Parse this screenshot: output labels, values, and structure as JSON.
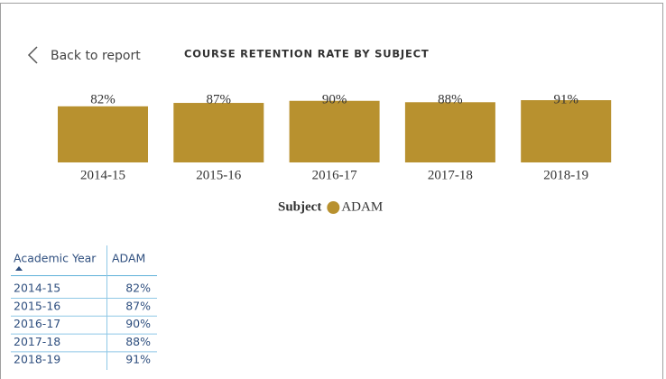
{
  "back_button": "Back to report",
  "chart_data": {
    "type": "bar",
    "title": "COURSE RETENTION RATE BY SUBJECT",
    "categories": [
      "2014-15",
      "2015-16",
      "2016-17",
      "2017-18",
      "2018-19"
    ],
    "legend_title": "Subject",
    "series": [
      {
        "name": "ADAM",
        "color": "#b8912f",
        "values": [
          82,
          87,
          90,
          88,
          91
        ],
        "value_labels": [
          "82%",
          "87%",
          "90%",
          "88%",
          "91%"
        ]
      }
    ]
  },
  "table": {
    "columns": [
      "Academic Year",
      "ADAM"
    ],
    "rows": [
      [
        "2014-15",
        "82%"
      ],
      [
        "2015-16",
        "87%"
      ],
      [
        "2016-17",
        "90%"
      ],
      [
        "2017-18",
        "88%"
      ],
      [
        "2018-19",
        "91%"
      ]
    ]
  }
}
